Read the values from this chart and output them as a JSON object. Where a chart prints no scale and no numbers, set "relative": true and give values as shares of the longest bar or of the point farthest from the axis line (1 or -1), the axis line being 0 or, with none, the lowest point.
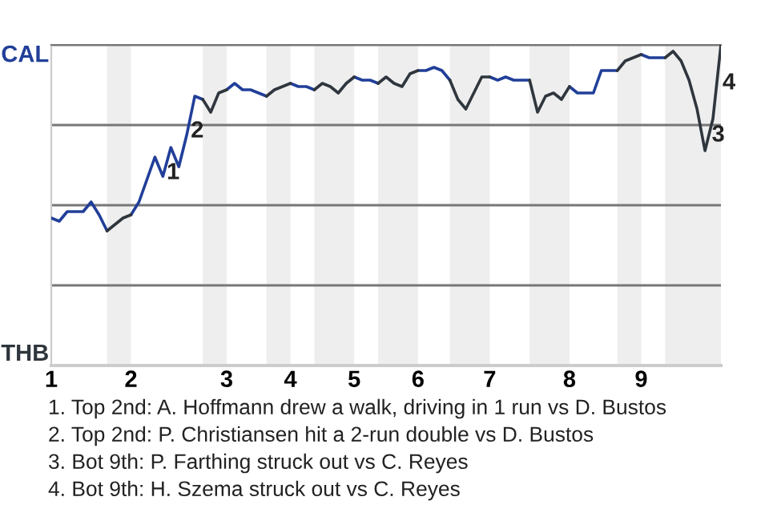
{
  "chart_data": {
    "type": "line",
    "relative": true,
    "categories": [
      "1",
      null,
      null,
      null,
      null,
      null,
      null,
      null,
      null,
      null,
      "2",
      null,
      null,
      null,
      null,
      null,
      null,
      null,
      null,
      null,
      null,
      null,
      "3",
      null,
      null,
      null,
      null,
      null,
      null,
      null,
      "4",
      null,
      null,
      null,
      null,
      null,
      null,
      null,
      "5",
      null,
      null,
      null,
      null,
      null,
      null,
      null,
      "6",
      null,
      null,
      null,
      null,
      null,
      null,
      null,
      null,
      "7",
      null,
      null,
      null,
      null,
      null,
      null,
      null,
      null,
      null,
      "8",
      null,
      null,
      null,
      null,
      null,
      null,
      null,
      null,
      "9",
      null,
      null,
      null,
      null,
      null,
      null,
      null,
      null,
      null,
      null
    ],
    "grid": "y",
    "legend": false,
    "marker": "none",
    "line_style": "solid",
    "series": [
      {
        "color": "#213f99",
        "values": [
          0.46,
          0.45,
          0.48,
          0.48,
          0.48,
          0.51,
          0.47,
          0.42,
          null,
          null,
          0.47,
          0.51,
          0.58,
          0.65,
          0.59,
          0.68,
          0.62,
          0.72,
          0.84,
          0.83,
          null,
          null,
          0.86,
          0.88,
          0.86,
          0.86,
          0.85,
          0.84,
          null,
          null,
          0.88,
          0.87,
          0.87,
          0.86,
          null,
          null,
          null,
          null,
          0.9,
          0.89,
          0.89,
          0.88,
          null,
          null,
          null,
          null,
          0.92,
          0.92,
          0.93,
          0.92,
          0.89,
          null,
          null,
          null,
          null,
          0.9,
          0.89,
          0.9,
          0.89,
          0.89,
          0.89,
          null,
          null,
          null,
          null,
          0.87,
          0.85,
          0.85,
          0.85,
          0.92,
          0.92,
          0.92,
          null,
          null,
          0.97,
          0.96,
          0.96,
          0.96,
          null,
          null,
          null,
          null,
          null,
          null,
          null
        ]
      },
      {
        "color": "#2f363d",
        "values": [
          null,
          null,
          null,
          null,
          null,
          null,
          null,
          0.42,
          0.44,
          0.46,
          0.47,
          null,
          null,
          null,
          null,
          null,
          null,
          null,
          null,
          0.83,
          0.79,
          0.85,
          0.86,
          null,
          null,
          null,
          null,
          0.84,
          0.86,
          0.87,
          0.88,
          null,
          null,
          0.86,
          0.88,
          0.87,
          0.85,
          0.88,
          0.9,
          null,
          null,
          0.88,
          0.9,
          0.88,
          0.87,
          0.91,
          0.92,
          null,
          null,
          null,
          0.89,
          0.83,
          0.8,
          0.85,
          0.9,
          0.9,
          null,
          null,
          null,
          null,
          0.89,
          0.79,
          0.84,
          0.85,
          0.83,
          0.87,
          null,
          null,
          null,
          null,
          null,
          0.92,
          0.95,
          0.96,
          0.97,
          null,
          null,
          0.96,
          0.98,
          0.95,
          0.89,
          0.8,
          0.67,
          0.77,
          1
        ]
      }
    ],
    "annotations": [
      "CAL",
      "THB",
      "1",
      "2",
      "3",
      "4",
      "1. Top 2nd: A. Hoffmann drew a walk, driving in 1 run vs D. Bustos",
      "2. Top 2nd: P. Christiansen hit a 2-run double vs D. Bustos",
      "3. Bot 9th: P. Farthing struck out vs C. Reyes",
      "4. Bot 9th: H. Szema struck out vs C. Reyes"
    ]
  }
}
